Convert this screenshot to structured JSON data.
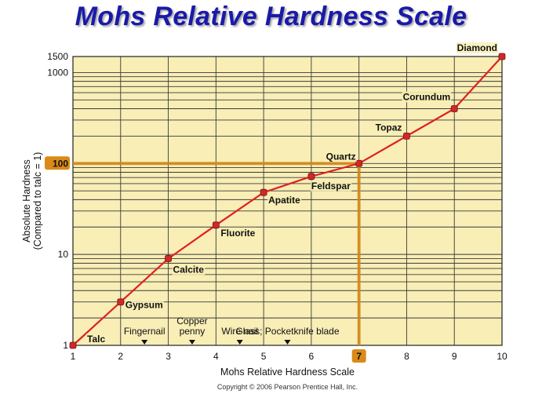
{
  "title": "Mohs Relative Hardness Scale",
  "copyright": "Copyright © 2006 Pearson Prentice Hall, Inc.",
  "colors": {
    "plot_background": "#f8eeb6",
    "curve": "#e02020",
    "marker": "#d02828",
    "highlight": "#d98a18",
    "title": "#1a1aa8"
  },
  "chart_data": {
    "type": "line",
    "xlabel": "Mohs Relative Hardness Scale",
    "ylabel_line1": "Absolute Hardness",
    "ylabel_line2": "(Compared to talc = 1)",
    "x_ticks": [
      1,
      2,
      3,
      4,
      5,
      6,
      7,
      8,
      9,
      10
    ],
    "y_ticks": [
      {
        "value": 1,
        "label": "1"
      },
      {
        "value": 10,
        "label": "10"
      },
      {
        "value": 100,
        "label": "100"
      },
      {
        "value": 1000,
        "label": "1000"
      },
      {
        "value": 1500,
        "label": "1500"
      }
    ],
    "yscale": "log",
    "xlim": [
      1,
      10
    ],
    "ylim": [
      1,
      1500
    ],
    "grid": true,
    "series": [
      {
        "points": [
          {
            "x": 1,
            "y": 1,
            "label": "Talc"
          },
          {
            "x": 2,
            "y": 3,
            "label": "Gypsum"
          },
          {
            "x": 3,
            "y": 9,
            "label": "Calcite"
          },
          {
            "x": 4,
            "y": 21,
            "label": "Fluorite"
          },
          {
            "x": 5,
            "y": 48,
            "label": "Apatite"
          },
          {
            "x": 6,
            "y": 72,
            "label": "Feldspar"
          },
          {
            "x": 7,
            "y": 100,
            "label": "Quartz"
          },
          {
            "x": 8,
            "y": 200,
            "label": "Topaz"
          },
          {
            "x": 9,
            "y": 400,
            "label": "Corundum"
          },
          {
            "x": 10,
            "y": 1500,
            "label": "Diamond"
          }
        ]
      }
    ],
    "highlight": {
      "x": 7,
      "y": 100,
      "x_label": "7",
      "y_label": "100"
    },
    "reference_items": [
      {
        "label": "Fingernail",
        "x": 2.5
      },
      {
        "label": "Copper\npenny",
        "x": 3.5
      },
      {
        "label": "Wire nail",
        "x": 4.5
      },
      {
        "label": "Glass; Pocketknife blade",
        "x": 5.5
      }
    ]
  }
}
